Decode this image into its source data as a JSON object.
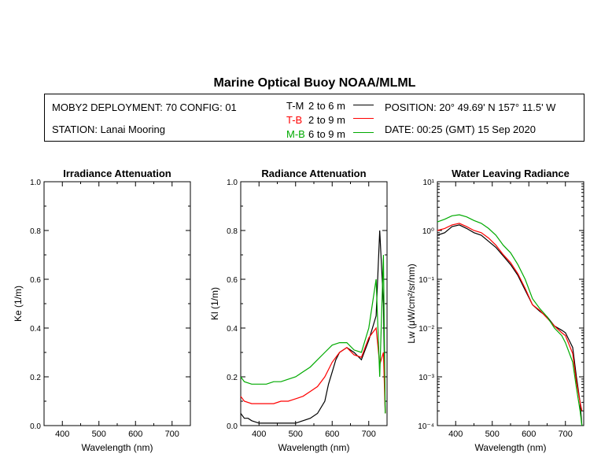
{
  "header": {
    "title": "Marine Optical Buoy NOAA/MLML",
    "deployment": "MOBY2 DEPLOYMENT: 70 CONFIG: 01",
    "station": "STATION: Lanai Mooring",
    "position": "POSITION: 20° 49.69' N   157° 11.5' W",
    "date": "DATE: 00:25 (GMT) 15 Sep 2020"
  },
  "legend": [
    {
      "label": "T-M",
      "range": "2 to 6  m",
      "color": "#000000"
    },
    {
      "label": "T-B",
      "range": "2 to 9  m",
      "color": "#ff0000"
    },
    {
      "label": "M-B",
      "range": "6 to 9  m",
      "color": "#00aa00"
    }
  ],
  "chart_data": [
    {
      "type": "line",
      "title": "Irradiance Attenuation",
      "xlabel": "Wavelength (nm)",
      "ylabel": "Ke  (1/m)",
      "xlim": [
        350,
        750
      ],
      "ylim": [
        0,
        1.0
      ],
      "xticks": [
        "400",
        "500",
        "600",
        "700"
      ],
      "yticks": [
        "0.0",
        "0.2",
        "0.4",
        "0.6",
        "0.8",
        "1.0"
      ],
      "series": []
    },
    {
      "type": "line",
      "title": "Radiance Attenuation",
      "xlabel": "Wavelength (nm)",
      "ylabel": "Kl  (1/m)",
      "xlim": [
        350,
        750
      ],
      "ylim": [
        0,
        1.0
      ],
      "xticks": [
        "400",
        "500",
        "600",
        "700"
      ],
      "yticks": [
        "0.0",
        "0.2",
        "0.4",
        "0.6",
        "0.8",
        "1.0"
      ],
      "series": [
        {
          "name": "T-M",
          "color": "#000000",
          "x": [
            350,
            360,
            370,
            380,
            400,
            420,
            440,
            460,
            480,
            500,
            520,
            540,
            560,
            580,
            590,
            600,
            610,
            620,
            640,
            660,
            680,
            700,
            720,
            730,
            740,
            745
          ],
          "y": [
            0.05,
            0.03,
            0.03,
            0.02,
            0.01,
            0.01,
            0.01,
            0.01,
            0.01,
            0.01,
            0.02,
            0.03,
            0.05,
            0.1,
            0.17,
            0.22,
            0.27,
            0.3,
            0.32,
            0.3,
            0.27,
            0.35,
            0.45,
            0.8,
            0.5,
            0.05
          ]
        },
        {
          "name": "T-B",
          "color": "#ff0000",
          "x": [
            350,
            360,
            380,
            400,
            420,
            440,
            460,
            480,
            500,
            520,
            540,
            560,
            580,
            600,
            620,
            640,
            660,
            680,
            700,
            720,
            730,
            740,
            745
          ],
          "y": [
            0.12,
            0.1,
            0.09,
            0.09,
            0.09,
            0.09,
            0.1,
            0.1,
            0.11,
            0.12,
            0.14,
            0.16,
            0.2,
            0.26,
            0.3,
            0.32,
            0.29,
            0.28,
            0.36,
            0.4,
            0.25,
            0.3,
            0.05
          ]
        },
        {
          "name": "M-B",
          "color": "#00aa00",
          "x": [
            350,
            360,
            380,
            400,
            420,
            440,
            460,
            480,
            500,
            520,
            540,
            560,
            580,
            600,
            620,
            640,
            660,
            680,
            700,
            720,
            730,
            740,
            745
          ],
          "y": [
            0.2,
            0.18,
            0.17,
            0.17,
            0.17,
            0.18,
            0.18,
            0.19,
            0.2,
            0.22,
            0.24,
            0.27,
            0.3,
            0.33,
            0.34,
            0.34,
            0.31,
            0.3,
            0.4,
            0.6,
            0.2,
            0.7,
            0.05
          ]
        }
      ]
    },
    {
      "type": "line",
      "title": "Water Leaving Radiance",
      "xlabel": "Wavelength (nm)",
      "ylabel": "Lw  (μW/cm²/sr/nm)",
      "yscale": "log",
      "xlim": [
        350,
        750
      ],
      "ylim": [
        0.0001,
        10
      ],
      "xticks": [
        "400",
        "500",
        "600",
        "700"
      ],
      "yticks": [
        "10⁻⁴",
        "10⁻³",
        "10⁻²",
        "10⁻¹",
        "10⁰",
        "10¹"
      ],
      "series": [
        {
          "name": "T-M",
          "color": "#000000",
          "x": [
            350,
            370,
            390,
            410,
            430,
            450,
            470,
            490,
            510,
            530,
            550,
            570,
            590,
            610,
            630,
            650,
            670,
            690,
            700,
            720,
            730,
            740,
            745
          ],
          "y": [
            0.8,
            0.9,
            1.2,
            1.3,
            1.1,
            0.9,
            0.8,
            0.6,
            0.45,
            0.3,
            0.2,
            0.12,
            0.06,
            0.03,
            0.022,
            0.017,
            0.011,
            0.009,
            0.008,
            0.004,
            0.001,
            0.0003,
            0.0001
          ]
        },
        {
          "name": "T-B",
          "color": "#ff0000",
          "x": [
            350,
            370,
            390,
            410,
            430,
            450,
            470,
            490,
            510,
            530,
            550,
            570,
            590,
            610,
            630,
            650,
            670,
            690,
            700,
            720,
            730,
            740,
            745
          ],
          "y": [
            1.0,
            1.1,
            1.3,
            1.4,
            1.2,
            1.0,
            0.9,
            0.7,
            0.5,
            0.32,
            0.22,
            0.13,
            0.065,
            0.03,
            0.023,
            0.016,
            0.011,
            0.008,
            0.007,
            0.003,
            0.0008,
            0.0003,
            0.0002
          ]
        },
        {
          "name": "M-B",
          "color": "#00aa00",
          "x": [
            350,
            370,
            390,
            410,
            430,
            450,
            470,
            490,
            510,
            530,
            550,
            570,
            590,
            610,
            630,
            650,
            670,
            690,
            700,
            720,
            730,
            740,
            745
          ],
          "y": [
            1.5,
            1.7,
            2.0,
            2.1,
            1.9,
            1.6,
            1.4,
            1.1,
            0.8,
            0.5,
            0.35,
            0.2,
            0.1,
            0.04,
            0.025,
            0.017,
            0.01,
            0.007,
            0.005,
            0.002,
            0.0006,
            0.0002,
            0.0001
          ]
        }
      ]
    }
  ]
}
